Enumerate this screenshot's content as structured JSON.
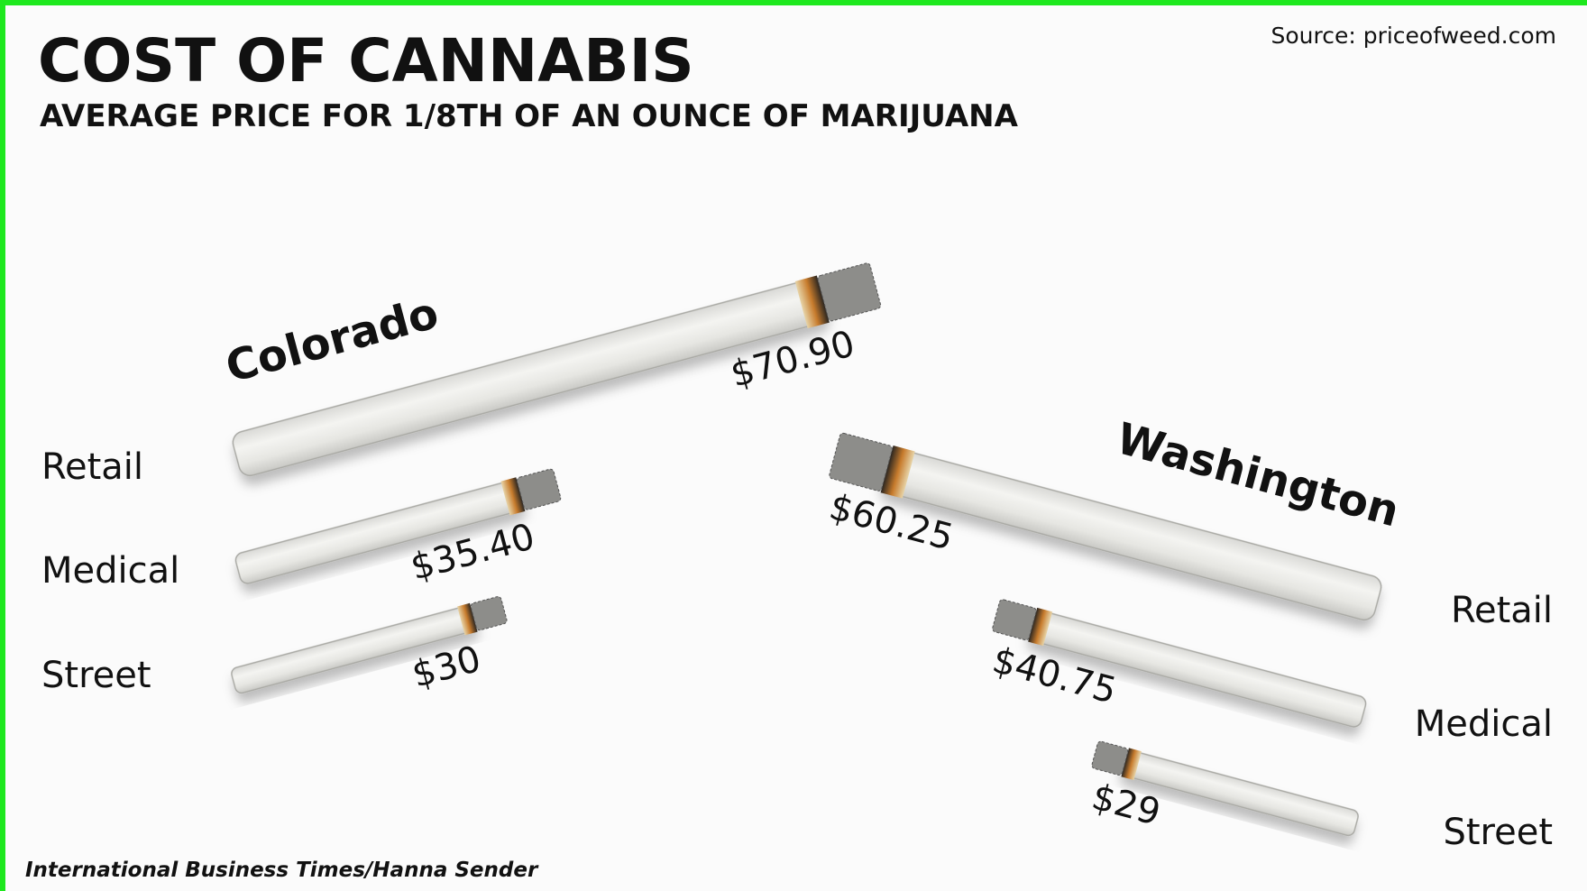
{
  "chart_data": {
    "type": "bar",
    "title": "COST OF CANNABIS",
    "subtitle": "AVERAGE PRICE FOR 1/8TH OF AN OUNCE OF MARIJUANA",
    "source": "Source: priceofweed.com",
    "credit": "International Business Times/Hanna Sender",
    "categories": [
      "Retail",
      "Medical",
      "Street"
    ],
    "series": [
      {
        "name": "Colorado",
        "values": [
          70.9,
          35.4,
          30
        ],
        "value_labels": [
          "$70.90",
          "$35.40",
          "$30"
        ]
      },
      {
        "name": "Washington",
        "values": [
          60.25,
          40.75,
          29
        ],
        "value_labels": [
          "$60.25",
          "$40.75",
          "$29"
        ]
      }
    ]
  }
}
